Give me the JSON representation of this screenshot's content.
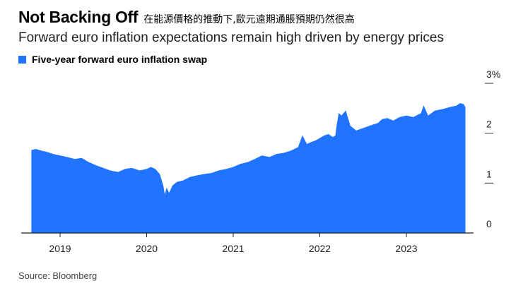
{
  "header": {
    "title": "Not Backing Off",
    "subtitle_cn": "在能源價格的推動下,歐元遠期通脹預期仍然很高",
    "subtitle": "Forward euro inflation expectations remain high driven by energy prices"
  },
  "legend": {
    "label": "Five-year forward euro inflation swap",
    "color": "#1f73ff"
  },
  "source": "Source: Bloomberg",
  "chart_data": {
    "type": "area",
    "title": "Not Backing Off",
    "subtitle": "Forward euro inflation expectations remain high driven by energy prices",
    "xlabel": "",
    "ylabel": "",
    "ylim": [
      0,
      3
    ],
    "xlim": [
      2018.67,
      2023.68
    ],
    "y_ticks": [
      0,
      1,
      2,
      3
    ],
    "y_tick_labels": [
      "0",
      "1",
      "2",
      "3%"
    ],
    "x_ticks": [
      2019,
      2020,
      2021,
      2022,
      2023
    ],
    "x_tick_labels": [
      "2019",
      "2020",
      "2021",
      "2022",
      "2023"
    ],
    "series": [
      {
        "name": "Five-year forward euro inflation swap",
        "color": "#1f73ff",
        "x": [
          2018.67,
          2018.72,
          2018.78,
          2018.85,
          2018.92,
          2019.0,
          2019.08,
          2019.17,
          2019.25,
          2019.33,
          2019.42,
          2019.5,
          2019.58,
          2019.67,
          2019.75,
          2019.83,
          2019.92,
          2020.0,
          2020.05,
          2020.1,
          2020.15,
          2020.19,
          2020.21,
          2020.23,
          2020.26,
          2020.3,
          2020.35,
          2020.42,
          2020.5,
          2020.58,
          2020.67,
          2020.75,
          2020.83,
          2020.92,
          2021.0,
          2021.08,
          2021.17,
          2021.25,
          2021.33,
          2021.42,
          2021.5,
          2021.58,
          2021.67,
          2021.75,
          2021.8,
          2021.85,
          2021.9,
          2021.95,
          2022.0,
          2022.05,
          2022.1,
          2022.15,
          2022.18,
          2022.2,
          2022.22,
          2022.25,
          2022.3,
          2022.35,
          2022.42,
          2022.5,
          2022.58,
          2022.67,
          2022.72,
          2022.78,
          2022.85,
          2022.92,
          2023.0,
          2023.08,
          2023.17,
          2023.2,
          2023.25,
          2023.33,
          2023.42,
          2023.5,
          2023.58,
          2023.62,
          2023.66,
          2023.68
        ],
        "values": [
          1.66,
          1.68,
          1.65,
          1.62,
          1.58,
          1.55,
          1.52,
          1.48,
          1.5,
          1.42,
          1.35,
          1.3,
          1.25,
          1.22,
          1.28,
          1.3,
          1.25,
          1.28,
          1.32,
          1.28,
          1.18,
          0.95,
          0.75,
          0.9,
          0.8,
          0.95,
          1.02,
          1.05,
          1.12,
          1.15,
          1.18,
          1.2,
          1.25,
          1.28,
          1.32,
          1.38,
          1.42,
          1.48,
          1.55,
          1.52,
          1.58,
          1.6,
          1.65,
          1.72,
          1.95,
          1.78,
          1.82,
          1.85,
          1.9,
          1.95,
          1.98,
          1.92,
          1.95,
          2.2,
          2.4,
          2.35,
          2.45,
          2.15,
          2.05,
          2.1,
          2.15,
          2.2,
          2.28,
          2.3,
          2.25,
          2.32,
          2.35,
          2.32,
          2.4,
          2.55,
          2.35,
          2.45,
          2.48,
          2.52,
          2.55,
          2.6,
          2.58,
          2.52
        ]
      }
    ]
  }
}
